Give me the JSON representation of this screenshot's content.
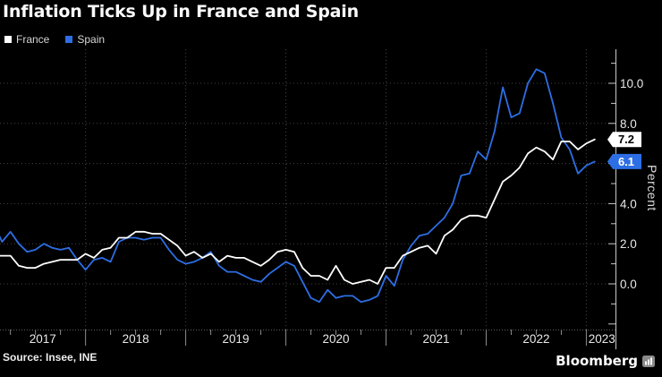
{
  "title": "Inflation Ticks Up in France and Spain",
  "legend": [
    {
      "label": "France",
      "color": "#ffffff"
    },
    {
      "label": "Spain",
      "color": "#2d6ee4"
    }
  ],
  "source": "Source: Insee, INE",
  "brand": {
    "name": "Bloomberg",
    "icon": "bloomberg-logo-icon"
  },
  "colors": {
    "background": "#000000",
    "france_line": "#ffffff",
    "spain_line": "#2d6ee4",
    "gridline": "#454545",
    "axis": "#c9c9c9",
    "tick": "#8c8c8c",
    "label_text": "#e8e8e8"
  },
  "chart_data": {
    "type": "line",
    "title": "Inflation Ticks Up in France and Spain",
    "xlabel": "",
    "ylabel": "Percent",
    "x_start": "2017-02",
    "x_end": "2023-02",
    "x_interval": "month",
    "x_tick_years": [
      "2017",
      "2018",
      "2019",
      "2020",
      "2021",
      "2022",
      "2023"
    ],
    "ylim_displayed": [
      -2.4,
      11.6
    ],
    "gridline_every": 2,
    "minor_tick_every": 1,
    "grid": "dotted",
    "legend_position": "top-left",
    "y_axis_side": "right",
    "y_gridline_values": [
      0,
      2,
      4,
      6,
      8,
      10
    ],
    "y_labels": [
      {
        "value": 10,
        "text": "10.0"
      },
      {
        "value": 8,
        "text": "8.0"
      },
      {
        "value": 4,
        "text": "4.0"
      },
      {
        "value": 2,
        "text": "2.0"
      },
      {
        "value": 0,
        "text": "0.0"
      }
    ],
    "series": [
      {
        "name": "Spain",
        "color": "#2d6ee4",
        "end_label": "6.1",
        "end_label_text_color": "#ffffff",
        "values": [
          3.0,
          2.1,
          2.6,
          2.0,
          1.6,
          1.7,
          2.0,
          1.8,
          1.7,
          1.8,
          1.2,
          0.7,
          1.2,
          1.3,
          1.1,
          2.1,
          2.3,
          2.3,
          2.2,
          2.3,
          2.3,
          1.7,
          1.2,
          1.0,
          1.1,
          1.3,
          1.6,
          0.9,
          0.6,
          0.6,
          0.4,
          0.2,
          0.1,
          0.5,
          0.8,
          1.1,
          0.9,
          0.1,
          -0.7,
          -0.9,
          -0.3,
          -0.7,
          -0.6,
          -0.6,
          -0.9,
          -0.8,
          -0.6,
          0.4,
          -0.1,
          1.2,
          1.9,
          2.4,
          2.5,
          2.9,
          3.3,
          4.0,
          5.4,
          5.5,
          6.6,
          6.2,
          7.6,
          9.8,
          8.3,
          8.5,
          10.0,
          10.7,
          10.5,
          9.0,
          7.3,
          6.7,
          5.5,
          5.9,
          6.1
        ]
      },
      {
        "name": "France",
        "color": "#ffffff",
        "end_label": "7.2",
        "end_label_text_color": "#000000",
        "values": [
          1.4,
          1.4,
          1.4,
          0.9,
          0.8,
          0.8,
          1.0,
          1.1,
          1.2,
          1.2,
          1.2,
          1.5,
          1.3,
          1.7,
          1.8,
          2.3,
          2.3,
          2.6,
          2.6,
          2.5,
          2.5,
          2.2,
          1.9,
          1.4,
          1.6,
          1.3,
          1.5,
          1.1,
          1.4,
          1.3,
          1.3,
          1.1,
          0.9,
          1.2,
          1.6,
          1.7,
          1.6,
          0.8,
          0.4,
          0.4,
          0.2,
          0.9,
          0.2,
          0.0,
          0.1,
          0.2,
          0.0,
          0.8,
          0.8,
          1.4,
          1.6,
          1.8,
          1.9,
          1.5,
          2.4,
          2.7,
          3.2,
          3.4,
          3.4,
          3.3,
          4.2,
          5.1,
          5.4,
          5.8,
          6.5,
          6.8,
          6.6,
          6.2,
          7.1,
          7.1,
          6.7,
          7.0,
          7.2
        ]
      }
    ]
  }
}
